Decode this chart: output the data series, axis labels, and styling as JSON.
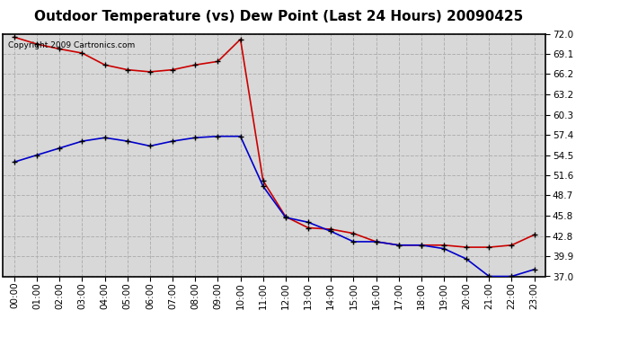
{
  "title": "Outdoor Temperature (vs) Dew Point (Last 24 Hours) 20090425",
  "copyright_text": "Copyright 2009 Cartronics.com",
  "background_color": "#ffffff",
  "plot_bg_color": "#d8d8d8",
  "grid_color": "#b0b0b0",
  "x_labels": [
    "00:00",
    "01:00",
    "02:00",
    "03:00",
    "04:00",
    "05:00",
    "06:00",
    "07:00",
    "08:00",
    "09:00",
    "10:00",
    "11:00",
    "12:00",
    "13:00",
    "14:00",
    "15:00",
    "16:00",
    "17:00",
    "18:00",
    "19:00",
    "20:00",
    "21:00",
    "22:00",
    "23:00"
  ],
  "temp_red": [
    71.5,
    70.5,
    69.8,
    69.2,
    67.5,
    66.8,
    66.5,
    66.8,
    67.5,
    68.0,
    71.2,
    50.8,
    45.6,
    44.0,
    43.8,
    43.2,
    42.0,
    41.5,
    41.5,
    41.5,
    41.2,
    41.2,
    41.5,
    43.0
  ],
  "dew_blue": [
    53.5,
    54.5,
    55.5,
    56.5,
    57.0,
    56.5,
    55.8,
    56.5,
    57.0,
    57.2,
    57.2,
    50.0,
    45.5,
    44.8,
    43.5,
    42.0,
    42.0,
    41.5,
    41.5,
    41.0,
    39.5,
    37.0,
    37.0,
    38.0
  ],
  "ylim": [
    37.0,
    72.0
  ],
  "yticks": [
    37.0,
    39.9,
    42.8,
    45.8,
    48.7,
    51.6,
    54.5,
    57.4,
    60.3,
    63.2,
    66.2,
    69.1,
    72.0
  ],
  "temp_color": "#cc0000",
  "dew_color": "#0000cc",
  "marker_color": "#000000",
  "title_fontsize": 11,
  "axis_fontsize": 7.5,
  "fig_width": 6.9,
  "fig_height": 3.75,
  "dpi": 100
}
